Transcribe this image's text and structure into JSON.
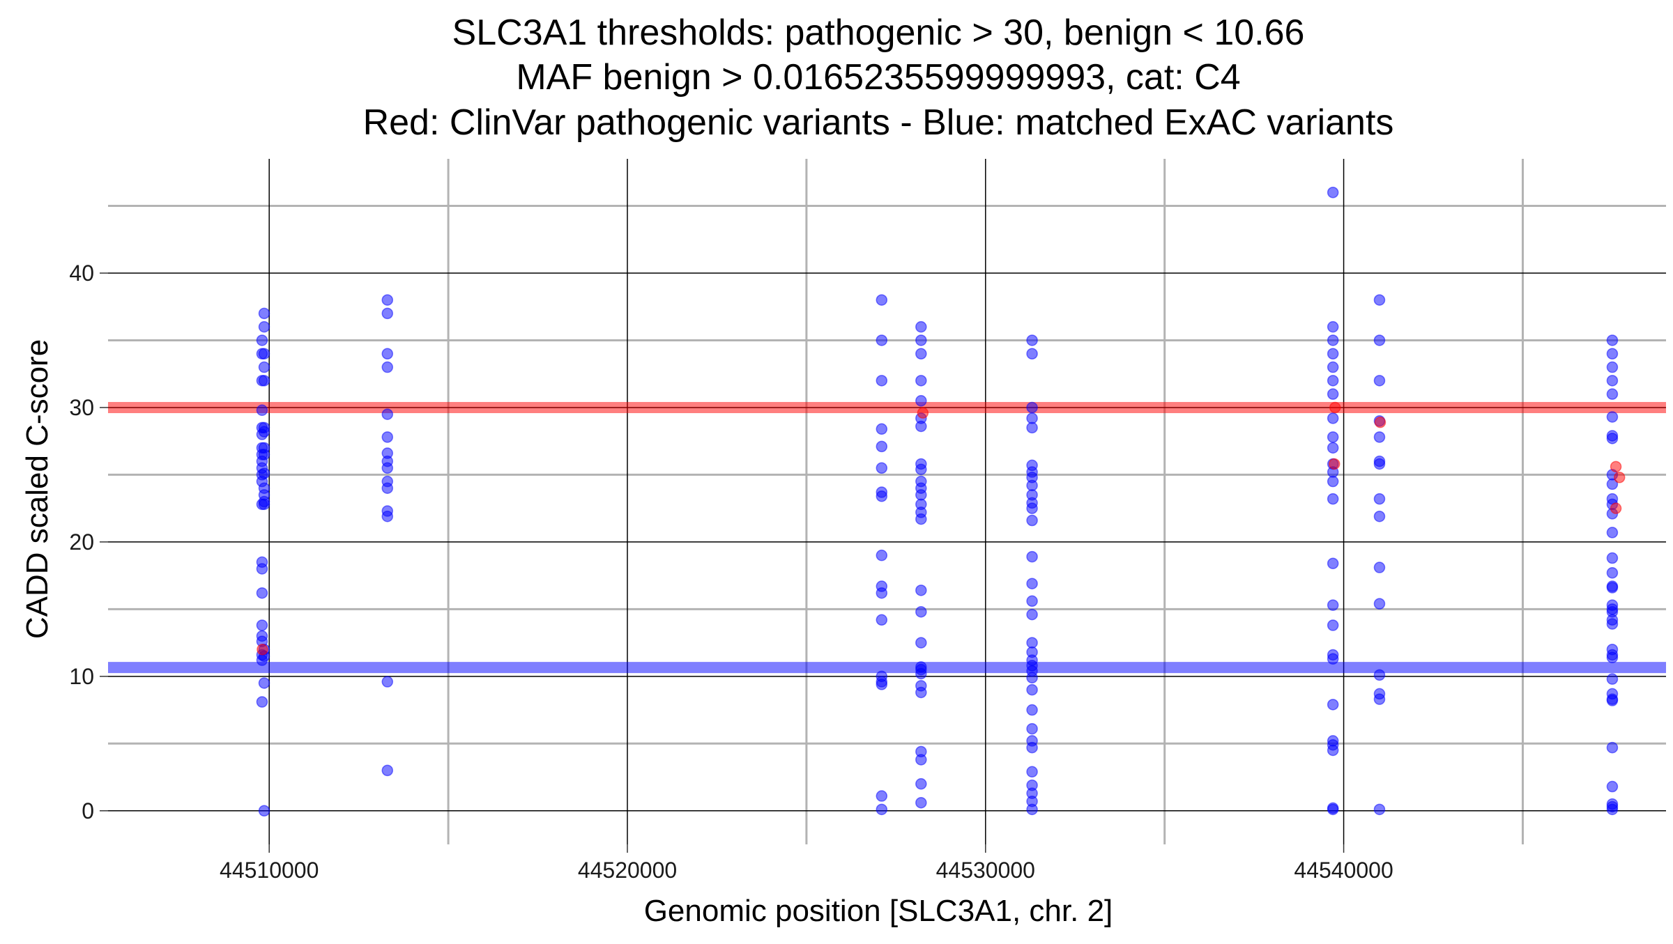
{
  "chart_data": {
    "type": "scatter",
    "title_lines": [
      "SLC3A1 thresholds: pathogenic > 30, benign < 10.66",
      "MAF benign > 0.0165235599999993, cat: C4",
      "Red: ClinVar pathogenic variants - Blue: matched ExAC variants"
    ],
    "xlabel": "Genomic position [SLC3A1, chr. 2]",
    "ylabel": "CADD scaled C-score",
    "xlim": [
      44505500,
      44549000
    ],
    "ylim": [
      -2.5,
      48.5
    ],
    "x_ticks": [
      44510000,
      44520000,
      44530000,
      44540000
    ],
    "x_tick_labels": [
      "44510000",
      "44520000",
      "44530000",
      "44540000"
    ],
    "y_ticks": [
      0,
      10,
      20,
      30,
      40
    ],
    "y_tick_labels": [
      "0",
      "10",
      "20",
      "30",
      "40"
    ],
    "x_minor_gridlines": [
      44515000,
      44525000,
      44535000,
      44545000
    ],
    "y_minor_gridlines": [
      5,
      15,
      25,
      35,
      45
    ],
    "thresholds": {
      "pathogenic": 30,
      "benign": 10.66
    },
    "colors": {
      "clinvar_pathogenic": "#ff0000",
      "exac_matched": "#0000ff",
      "major_grid": "#000000",
      "minor_grid": "#b3b3b3"
    },
    "point_opacity": 0.5,
    "series": [
      {
        "color": "#0000ff",
        "points": [
          [
            44509800,
            35
          ],
          [
            44509800,
            34
          ],
          [
            44509800,
            32
          ],
          [
            44509800,
            29.8
          ],
          [
            44509800,
            28.5
          ],
          [
            44509800,
            28
          ],
          [
            44509800,
            27
          ],
          [
            44509800,
            26.5
          ],
          [
            44509800,
            26
          ],
          [
            44509800,
            25.5
          ],
          [
            44509800,
            25
          ],
          [
            44509800,
            24.5
          ],
          [
            44509800,
            22.8
          ],
          [
            44509800,
            18.5
          ],
          [
            44509800,
            18
          ],
          [
            44509800,
            16.2
          ],
          [
            44509800,
            13.8
          ],
          [
            44509800,
            13
          ],
          [
            44509800,
            12.6
          ],
          [
            44509800,
            11.6
          ],
          [
            44509800,
            11.2
          ],
          [
            44509800,
            8.1
          ],
          [
            44509860,
            37
          ],
          [
            44509860,
            36
          ],
          [
            44509860,
            34
          ],
          [
            44509860,
            33
          ],
          [
            44509860,
            32
          ],
          [
            44509860,
            28.5
          ],
          [
            44509860,
            28.2
          ],
          [
            44509860,
            27
          ],
          [
            44509860,
            26.5
          ],
          [
            44509860,
            25.1
          ],
          [
            44509860,
            24
          ],
          [
            44509860,
            23.5
          ],
          [
            44509860,
            23
          ],
          [
            44509860,
            22.8
          ],
          [
            44509860,
            12
          ],
          [
            44509860,
            11.5
          ],
          [
            44509860,
            9.5
          ],
          [
            44509860,
            0
          ],
          [
            44513300,
            38
          ],
          [
            44513300,
            37
          ],
          [
            44513300,
            34
          ],
          [
            44513300,
            33
          ],
          [
            44513300,
            29.5
          ],
          [
            44513300,
            27.8
          ],
          [
            44513300,
            26.6
          ],
          [
            44513300,
            26
          ],
          [
            44513300,
            25.5
          ],
          [
            44513300,
            24.5
          ],
          [
            44513300,
            24
          ],
          [
            44513300,
            22.3
          ],
          [
            44513300,
            21.9
          ],
          [
            44513300,
            9.6
          ],
          [
            44513300,
            3
          ],
          [
            44527100,
            38
          ],
          [
            44527100,
            35
          ],
          [
            44527100,
            32
          ],
          [
            44527100,
            28.4
          ],
          [
            44527100,
            27.1
          ],
          [
            44527100,
            25.5
          ],
          [
            44527100,
            23.7
          ],
          [
            44527100,
            23.4
          ],
          [
            44527100,
            19
          ],
          [
            44527100,
            16.7
          ],
          [
            44527100,
            16.2
          ],
          [
            44527100,
            14.2
          ],
          [
            44527100,
            10
          ],
          [
            44527100,
            9.6
          ],
          [
            44527100,
            9.4
          ],
          [
            44527100,
            1.1
          ],
          [
            44527100,
            0.1
          ],
          [
            44528200,
            36
          ],
          [
            44528200,
            35
          ],
          [
            44528200,
            34
          ],
          [
            44528200,
            32
          ],
          [
            44528200,
            30.5
          ],
          [
            44528200,
            29.2
          ],
          [
            44528200,
            28.6
          ],
          [
            44528200,
            25.8
          ],
          [
            44528200,
            25.4
          ],
          [
            44528200,
            24.5
          ],
          [
            44528200,
            24
          ],
          [
            44528200,
            23.5
          ],
          [
            44528200,
            22.8
          ],
          [
            44528200,
            22.2
          ],
          [
            44528200,
            21.7
          ],
          [
            44528200,
            16.4
          ],
          [
            44528200,
            14.8
          ],
          [
            44528200,
            12.5
          ],
          [
            44528200,
            10.7
          ],
          [
            44528200,
            10.5
          ],
          [
            44528200,
            10.2
          ],
          [
            44528200,
            9.3
          ],
          [
            44528200,
            8.8
          ],
          [
            44528200,
            4.4
          ],
          [
            44528200,
            3.8
          ],
          [
            44528200,
            2
          ],
          [
            44528200,
            0.6
          ],
          [
            44531300,
            35
          ],
          [
            44531300,
            34
          ],
          [
            44531300,
            30
          ],
          [
            44531300,
            29.2
          ],
          [
            44531300,
            28.5
          ],
          [
            44531300,
            25.7
          ],
          [
            44531300,
            25.2
          ],
          [
            44531300,
            24.8
          ],
          [
            44531300,
            24.2
          ],
          [
            44531300,
            23.5
          ],
          [
            44531300,
            22.9
          ],
          [
            44531300,
            22.5
          ],
          [
            44531300,
            21.6
          ],
          [
            44531300,
            18.9
          ],
          [
            44531300,
            16.9
          ],
          [
            44531300,
            15.6
          ],
          [
            44531300,
            14.6
          ],
          [
            44531300,
            12.5
          ],
          [
            44531300,
            11.8
          ],
          [
            44531300,
            11.2
          ],
          [
            44531300,
            10.8
          ],
          [
            44531300,
            10.4
          ],
          [
            44531300,
            9.9
          ],
          [
            44531300,
            9
          ],
          [
            44531300,
            7.5
          ],
          [
            44531300,
            6.1
          ],
          [
            44531300,
            5.2
          ],
          [
            44531300,
            4.7
          ],
          [
            44531300,
            2.9
          ],
          [
            44531300,
            1.9
          ],
          [
            44531300,
            1.3
          ],
          [
            44531300,
            0.7
          ],
          [
            44531300,
            0.1
          ],
          [
            44539700,
            46
          ],
          [
            44539700,
            36
          ],
          [
            44539700,
            35
          ],
          [
            44539700,
            34
          ],
          [
            44539700,
            33
          ],
          [
            44539700,
            32
          ],
          [
            44539700,
            31
          ],
          [
            44539700,
            29.2
          ],
          [
            44539700,
            27.8
          ],
          [
            44539700,
            27
          ],
          [
            44539700,
            25.8
          ],
          [
            44539700,
            25.2
          ],
          [
            44539700,
            24.5
          ],
          [
            44539700,
            23.2
          ],
          [
            44539700,
            18.4
          ],
          [
            44539700,
            15.3
          ],
          [
            44539700,
            13.8
          ],
          [
            44539700,
            11.6
          ],
          [
            44539700,
            11.3
          ],
          [
            44539700,
            7.9
          ],
          [
            44539700,
            5.2
          ],
          [
            44539700,
            4.9
          ],
          [
            44539700,
            4.5
          ],
          [
            44539700,
            0.2
          ],
          [
            44539700,
            0.1
          ],
          [
            44541000,
            38
          ],
          [
            44541000,
            35
          ],
          [
            44541000,
            32
          ],
          [
            44541000,
            29
          ],
          [
            44541000,
            27.8
          ],
          [
            44541000,
            26
          ],
          [
            44541000,
            25.8
          ],
          [
            44541000,
            23.2
          ],
          [
            44541000,
            21.9
          ],
          [
            44541000,
            18.1
          ],
          [
            44541000,
            15.4
          ],
          [
            44541000,
            10.1
          ],
          [
            44541000,
            8.7
          ],
          [
            44541000,
            8.3
          ],
          [
            44541000,
            0.1
          ],
          [
            44547500,
            35
          ],
          [
            44547500,
            34
          ],
          [
            44547500,
            33
          ],
          [
            44547500,
            32
          ],
          [
            44547500,
            31
          ],
          [
            44547500,
            29.3
          ],
          [
            44547500,
            27.9
          ],
          [
            44547500,
            27.7
          ],
          [
            44547500,
            25
          ],
          [
            44547500,
            24.3
          ],
          [
            44547500,
            23.2
          ],
          [
            44547500,
            22.8
          ],
          [
            44547500,
            22.1
          ],
          [
            44547500,
            20.7
          ],
          [
            44547500,
            18.8
          ],
          [
            44547500,
            17.7
          ],
          [
            44547500,
            16.7
          ],
          [
            44547500,
            16.6
          ],
          [
            44547500,
            15.3
          ],
          [
            44547500,
            15
          ],
          [
            44547500,
            14.8
          ],
          [
            44547500,
            14.2
          ],
          [
            44547500,
            13.9
          ],
          [
            44547500,
            12
          ],
          [
            44547500,
            11.6
          ],
          [
            44547500,
            11.4
          ],
          [
            44547500,
            9.8
          ],
          [
            44547500,
            8.7
          ],
          [
            44547500,
            8.3
          ],
          [
            44547500,
            8.2
          ],
          [
            44547500,
            4.7
          ],
          [
            44547500,
            1.8
          ],
          [
            44547500,
            0.5
          ],
          [
            44547500,
            0.3
          ],
          [
            44547500,
            0.1
          ]
        ]
      },
      {
        "color": "#ff0000",
        "points": [
          [
            44509810,
            12
          ],
          [
            44528250,
            29.6
          ],
          [
            44539760,
            30
          ],
          [
            44539740,
            25.8
          ],
          [
            44541020,
            28.9
          ],
          [
            44547600,
            25.6
          ],
          [
            44547700,
            24.8
          ],
          [
            44547600,
            22.5
          ]
        ]
      }
    ]
  }
}
